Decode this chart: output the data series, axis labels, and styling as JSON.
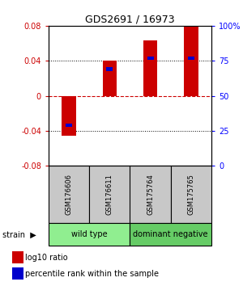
{
  "title": "GDS2691 / 16973",
  "samples": [
    "GSM176606",
    "GSM176611",
    "GSM175764",
    "GSM175765"
  ],
  "log10_ratio": [
    -0.046,
    0.04,
    0.063,
    0.079
  ],
  "percentile_rank": [
    0.29,
    0.69,
    0.77,
    0.77
  ],
  "ylim": [
    -0.08,
    0.08
  ],
  "yticks_left": [
    -0.08,
    -0.04,
    0,
    0.04,
    0.08
  ],
  "yticks_right": [
    0,
    25,
    50,
    75,
    100
  ],
  "groups": [
    {
      "label": "wild type",
      "samples": [
        0,
        1
      ],
      "color": "#90ee90"
    },
    {
      "label": "dominant negative",
      "samples": [
        2,
        3
      ],
      "color": "#66cc66"
    }
  ],
  "bar_width": 0.35,
  "red_color": "#cc0000",
  "blue_color": "#0000cc",
  "zero_line_color": "#cc0000",
  "grid_color": "#000000",
  "label_red": "log10 ratio",
  "label_blue": "percentile rank within the sample",
  "bg_sample_box": "#c8c8c8",
  "bg_sample_border": "#000000"
}
